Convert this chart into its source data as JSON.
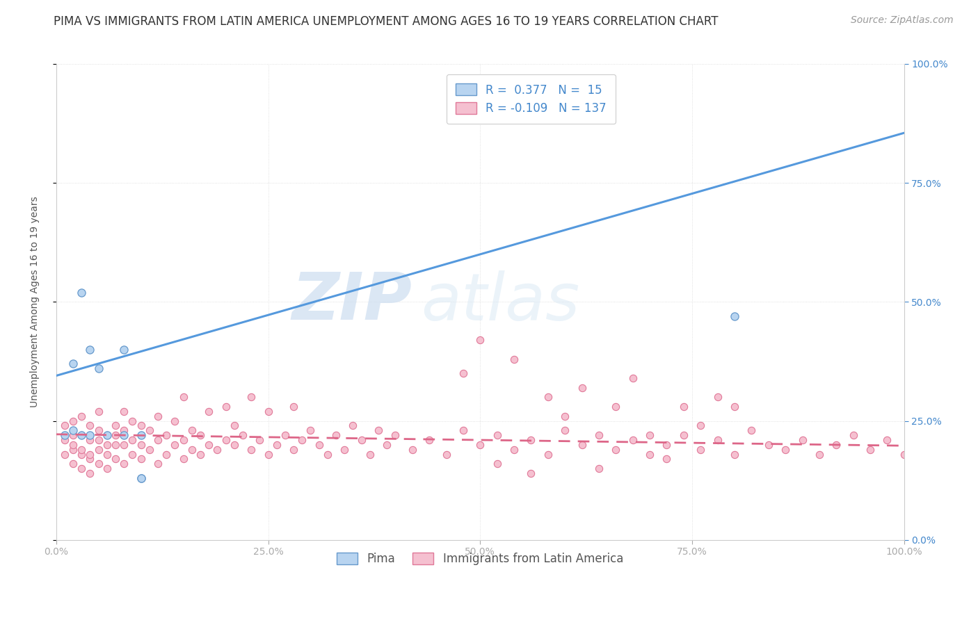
{
  "title": "PIMA VS IMMIGRANTS FROM LATIN AMERICA UNEMPLOYMENT AMONG AGES 16 TO 19 YEARS CORRELATION CHART",
  "source": "Source: ZipAtlas.com",
  "ylabel": "Unemployment Among Ages 16 to 19 years",
  "xlabel": "",
  "xlim": [
    0.0,
    1.0
  ],
  "ylim": [
    0.0,
    1.0
  ],
  "watermark_zip": "ZIP",
  "watermark_atlas": "atlas",
  "pima_color": "#b8d4f0",
  "pima_edge_color": "#6699cc",
  "immigrants_color": "#f5c0d0",
  "immigrants_edge_color": "#e07898",
  "pima_line_color": "#5599dd",
  "immigrants_line_color": "#dd6688",
  "pima_R": 0.377,
  "pima_N": 15,
  "immigrants_R": -0.109,
  "immigrants_N": 137,
  "pima_line_x0": 0.0,
  "pima_line_y0": 0.345,
  "pima_line_x1": 1.0,
  "pima_line_y1": 0.855,
  "imm_line_x0": 0.0,
  "imm_line_y0": 0.222,
  "imm_line_x1": 1.0,
  "imm_line_y1": 0.198,
  "pima_scatter_x": [
    0.01,
    0.02,
    0.02,
    0.03,
    0.03,
    0.04,
    0.04,
    0.05,
    0.06,
    0.08,
    0.08,
    0.1,
    0.1,
    0.8,
    0.1
  ],
  "pima_scatter_y": [
    0.22,
    0.23,
    0.37,
    0.22,
    0.52,
    0.22,
    0.4,
    0.36,
    0.22,
    0.22,
    0.4,
    0.13,
    0.13,
    0.47,
    0.22
  ],
  "immigrants_scatter_x": [
    0.01,
    0.01,
    0.01,
    0.02,
    0.02,
    0.02,
    0.02,
    0.02,
    0.03,
    0.03,
    0.03,
    0.03,
    0.03,
    0.04,
    0.04,
    0.04,
    0.04,
    0.04,
    0.05,
    0.05,
    0.05,
    0.05,
    0.05,
    0.06,
    0.06,
    0.06,
    0.06,
    0.07,
    0.07,
    0.07,
    0.07,
    0.08,
    0.08,
    0.08,
    0.08,
    0.09,
    0.09,
    0.09,
    0.1,
    0.1,
    0.1,
    0.11,
    0.11,
    0.12,
    0.12,
    0.12,
    0.13,
    0.13,
    0.14,
    0.14,
    0.15,
    0.15,
    0.15,
    0.16,
    0.16,
    0.17,
    0.17,
    0.18,
    0.18,
    0.19,
    0.2,
    0.2,
    0.21,
    0.21,
    0.22,
    0.23,
    0.23,
    0.24,
    0.25,
    0.25,
    0.26,
    0.27,
    0.28,
    0.28,
    0.29,
    0.3,
    0.31,
    0.32,
    0.33,
    0.34,
    0.35,
    0.36,
    0.37,
    0.38,
    0.39,
    0.4,
    0.42,
    0.44,
    0.46,
    0.48,
    0.5,
    0.52,
    0.54,
    0.56,
    0.58,
    0.6,
    0.62,
    0.64,
    0.66,
    0.68,
    0.7,
    0.72,
    0.74,
    0.76,
    0.78,
    0.8,
    0.82,
    0.84,
    0.86,
    0.88,
    0.9,
    0.92,
    0.94,
    0.96,
    0.98,
    1.0,
    0.48,
    0.5,
    0.52,
    0.54,
    0.56,
    0.58,
    0.6,
    0.62,
    0.64,
    0.66,
    0.68,
    0.7,
    0.72,
    0.74,
    0.76,
    0.78,
    0.8
  ],
  "immigrants_scatter_y": [
    0.18,
    0.21,
    0.24,
    0.16,
    0.19,
    0.22,
    0.25,
    0.2,
    0.15,
    0.18,
    0.22,
    0.26,
    0.19,
    0.14,
    0.17,
    0.21,
    0.24,
    0.18,
    0.16,
    0.19,
    0.23,
    0.27,
    0.21,
    0.15,
    0.18,
    0.22,
    0.2,
    0.17,
    0.2,
    0.24,
    0.22,
    0.16,
    0.2,
    0.23,
    0.27,
    0.18,
    0.21,
    0.25,
    0.17,
    0.2,
    0.24,
    0.19,
    0.23,
    0.16,
    0.21,
    0.26,
    0.18,
    0.22,
    0.2,
    0.25,
    0.17,
    0.21,
    0.3,
    0.19,
    0.23,
    0.18,
    0.22,
    0.2,
    0.27,
    0.19,
    0.21,
    0.28,
    0.2,
    0.24,
    0.22,
    0.19,
    0.3,
    0.21,
    0.18,
    0.27,
    0.2,
    0.22,
    0.19,
    0.28,
    0.21,
    0.23,
    0.2,
    0.18,
    0.22,
    0.19,
    0.24,
    0.21,
    0.18,
    0.23,
    0.2,
    0.22,
    0.19,
    0.21,
    0.18,
    0.23,
    0.2,
    0.22,
    0.19,
    0.21,
    0.18,
    0.23,
    0.2,
    0.22,
    0.19,
    0.21,
    0.18,
    0.2,
    0.22,
    0.19,
    0.21,
    0.18,
    0.23,
    0.2,
    0.19,
    0.21,
    0.18,
    0.2,
    0.22,
    0.19,
    0.21,
    0.18,
    0.35,
    0.42,
    0.16,
    0.38,
    0.14,
    0.3,
    0.26,
    0.32,
    0.15,
    0.28,
    0.34,
    0.22,
    0.17,
    0.28,
    0.24,
    0.3,
    0.28
  ],
  "xtick_positions": [
    0.0,
    0.25,
    0.5,
    0.75,
    1.0
  ],
  "xtick_labels": [
    "0.0%",
    "25.0%",
    "50.0%",
    "75.0%",
    "100.0%"
  ],
  "ytick_positions": [
    0.0,
    0.25,
    0.5,
    0.75,
    1.0
  ],
  "ytick_labels_right": [
    "0.0%",
    "25.0%",
    "50.0%",
    "75.0%",
    "100.0%"
  ],
  "title_fontsize": 12,
  "label_fontsize": 10,
  "tick_fontsize": 10,
  "legend_fontsize": 12,
  "source_fontsize": 10,
  "right_tick_color": "#4488cc"
}
